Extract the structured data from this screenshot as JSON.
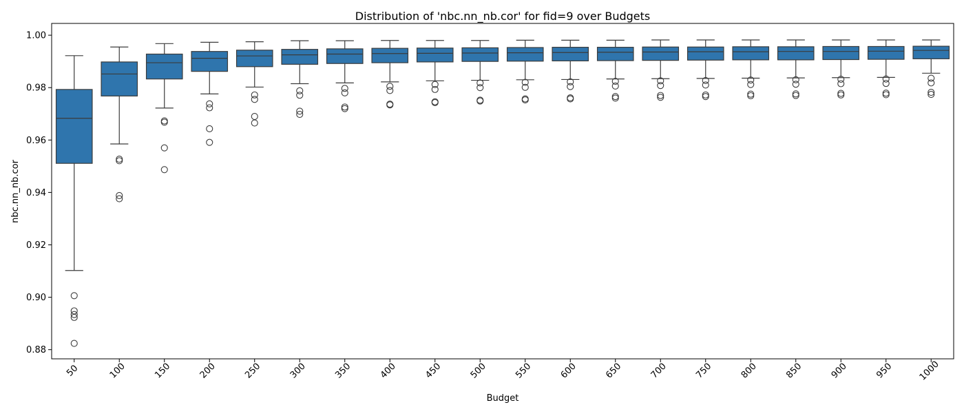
{
  "chart_data": {
    "type": "box",
    "title": "Distribution of 'nbc.nn_nb.cor' for fid=9 over Budgets",
    "xlabel": "Budget",
    "ylabel": "nbc.nn_nb.cor",
    "ylim": [
      0.8765,
      1.0045
    ],
    "yticks": [
      0.88,
      0.9,
      0.92,
      0.94,
      0.96,
      0.98,
      1.0
    ],
    "ytick_labels": [
      "0.88",
      "0.90",
      "0.92",
      "0.94",
      "0.96",
      "0.98",
      "1.00"
    ],
    "grid": false,
    "legend": "none",
    "colors": {
      "box_fill": "#2f75ad",
      "line": "#3b3b3b"
    },
    "categories": [
      "50",
      "100",
      "150",
      "200",
      "250",
      "300",
      "350",
      "400",
      "450",
      "500",
      "550",
      "600",
      "650",
      "700",
      "750",
      "800",
      "850",
      "900",
      "950",
      "1000"
    ],
    "boxes": [
      {
        "whisker_low": 0.9102,
        "q1": 0.9511,
        "median": 0.9683,
        "q3": 0.9793,
        "whisker_high": 0.9922,
        "outliers": [
          0.9006,
          0.8948,
          0.8934,
          0.8923,
          0.8824
        ]
      },
      {
        "whisker_low": 0.9585,
        "q1": 0.9768,
        "median": 0.9852,
        "q3": 0.9898,
        "whisker_high": 0.9955,
        "outliers": [
          0.9527,
          0.9521,
          0.9388,
          0.9376
        ]
      },
      {
        "whisker_low": 0.9722,
        "q1": 0.9833,
        "median": 0.9895,
        "q3": 0.9928,
        "whisker_high": 0.9968,
        "outliers": [
          0.9673,
          0.9668,
          0.957,
          0.9487
        ]
      },
      {
        "whisker_low": 0.9776,
        "q1": 0.9862,
        "median": 0.9912,
        "q3": 0.9938,
        "whisker_high": 0.9973,
        "outliers": [
          0.9738,
          0.9723,
          0.9643,
          0.9591
        ]
      },
      {
        "whisker_low": 0.9802,
        "q1": 0.988,
        "median": 0.9921,
        "q3": 0.9943,
        "whisker_high": 0.9975,
        "outliers": [
          0.9772,
          0.9755,
          0.969,
          0.9665
        ]
      },
      {
        "whisker_low": 0.9815,
        "q1": 0.9889,
        "median": 0.9925,
        "q3": 0.9946,
        "whisker_high": 0.9979,
        "outliers": [
          0.9788,
          0.9771,
          0.971,
          0.9698
        ]
      },
      {
        "whisker_low": 0.9818,
        "q1": 0.9892,
        "median": 0.9928,
        "q3": 0.9948,
        "whisker_high": 0.9979,
        "outliers": [
          0.9797,
          0.978,
          0.9726,
          0.972
        ]
      },
      {
        "whisker_low": 0.9822,
        "q1": 0.9895,
        "median": 0.993,
        "q3": 0.995,
        "whisker_high": 0.998,
        "outliers": [
          0.9805,
          0.9789,
          0.9737,
          0.9734
        ]
      },
      {
        "whisker_low": 0.9826,
        "q1": 0.9898,
        "median": 0.9931,
        "q3": 0.9951,
        "whisker_high": 0.998,
        "outliers": [
          0.9812,
          0.9793,
          0.9746,
          0.9743
        ]
      },
      {
        "whisker_low": 0.9828,
        "q1": 0.99,
        "median": 0.9932,
        "q3": 0.9952,
        "whisker_high": 0.998,
        "outliers": [
          0.9818,
          0.98,
          0.9752,
          0.9749
        ]
      },
      {
        "whisker_low": 0.983,
        "q1": 0.9901,
        "median": 0.9933,
        "q3": 0.9953,
        "whisker_high": 0.9981,
        "outliers": [
          0.982,
          0.9801,
          0.9757,
          0.9753
        ]
      },
      {
        "whisker_low": 0.9831,
        "q1": 0.9902,
        "median": 0.9934,
        "q3": 0.9954,
        "whisker_high": 0.9981,
        "outliers": [
          0.9822,
          0.9804,
          0.9761,
          0.9757
        ]
      },
      {
        "whisker_low": 0.9833,
        "q1": 0.9903,
        "median": 0.9935,
        "q3": 0.9954,
        "whisker_high": 0.9981,
        "outliers": [
          0.9824,
          0.9806,
          0.9766,
          0.976
        ]
      },
      {
        "whisker_low": 0.9834,
        "q1": 0.9904,
        "median": 0.9936,
        "q3": 0.9955,
        "whisker_high": 0.9982,
        "outliers": [
          0.9826,
          0.9808,
          0.977,
          0.9763
        ]
      },
      {
        "whisker_low": 0.9835,
        "q1": 0.9905,
        "median": 0.9937,
        "q3": 0.9955,
        "whisker_high": 0.9982,
        "outliers": [
          0.9827,
          0.981,
          0.9772,
          0.9766
        ]
      },
      {
        "whisker_low": 0.9836,
        "q1": 0.9906,
        "median": 0.9937,
        "q3": 0.9956,
        "whisker_high": 0.9982,
        "outliers": [
          0.9829,
          0.9812,
          0.9775,
          0.9769
        ]
      },
      {
        "whisker_low": 0.9837,
        "q1": 0.9906,
        "median": 0.9938,
        "q3": 0.9956,
        "whisker_high": 0.9982,
        "outliers": [
          0.983,
          0.9813,
          0.9776,
          0.977
        ]
      },
      {
        "whisker_low": 0.9838,
        "q1": 0.9907,
        "median": 0.9938,
        "q3": 0.9957,
        "whisker_high": 0.9982,
        "outliers": [
          0.9832,
          0.9815,
          0.9778,
          0.9772
        ]
      },
      {
        "whisker_low": 0.9839,
        "q1": 0.9908,
        "median": 0.9939,
        "q3": 0.9957,
        "whisker_high": 0.9982,
        "outliers": [
          0.9833,
          0.9816,
          0.9779,
          0.9773
        ]
      },
      {
        "whisker_low": 0.9855,
        "q1": 0.991,
        "median": 0.9942,
        "q3": 0.9958,
        "whisker_high": 0.9982,
        "outliers": [
          0.9836,
          0.9818,
          0.9782,
          0.9774
        ]
      }
    ]
  }
}
